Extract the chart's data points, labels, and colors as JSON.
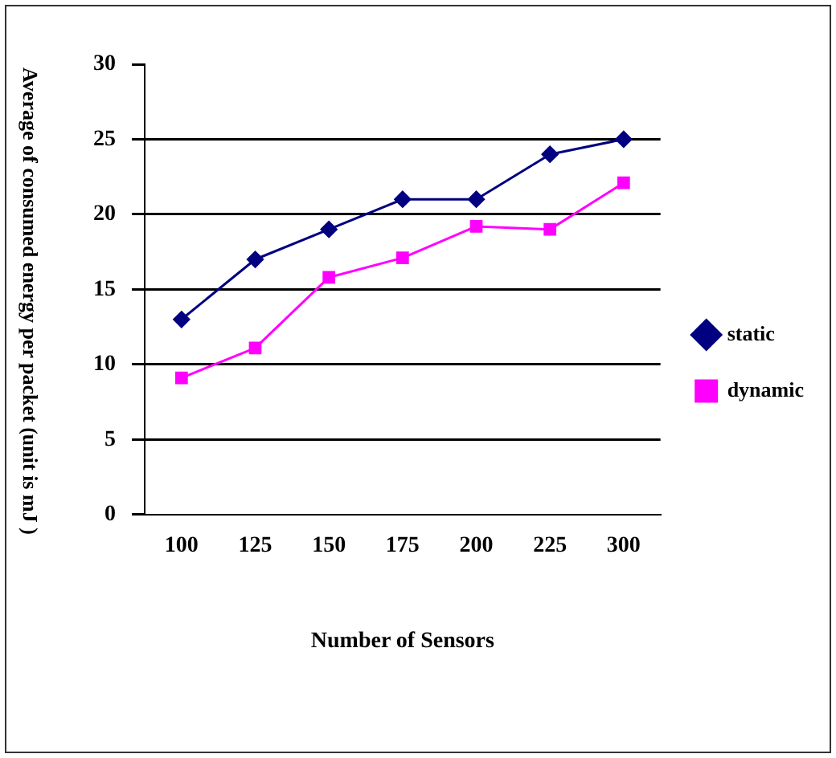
{
  "chart_data": {
    "type": "line",
    "xlabel": "Number of Sensors",
    "ylabel": "Average of consumed energy per packet (unit is mJ )",
    "categories": [
      "100",
      "125",
      "150",
      "175",
      "200",
      "225",
      "300"
    ],
    "series": [
      {
        "name": "static",
        "color": "#000080",
        "marker": "diamond",
        "values": [
          13,
          17,
          19,
          21,
          21,
          24,
          25
        ]
      },
      {
        "name": "dynamic",
        "color": "#ff00ff",
        "marker": "square",
        "values": [
          9.1,
          11.1,
          15.8,
          17.1,
          19.2,
          19,
          22.1
        ]
      }
    ],
    "ylim": [
      0,
      30
    ],
    "yticks": [
      0,
      5,
      10,
      15,
      20,
      25,
      30
    ],
    "grid": "y",
    "legend": "right"
  }
}
